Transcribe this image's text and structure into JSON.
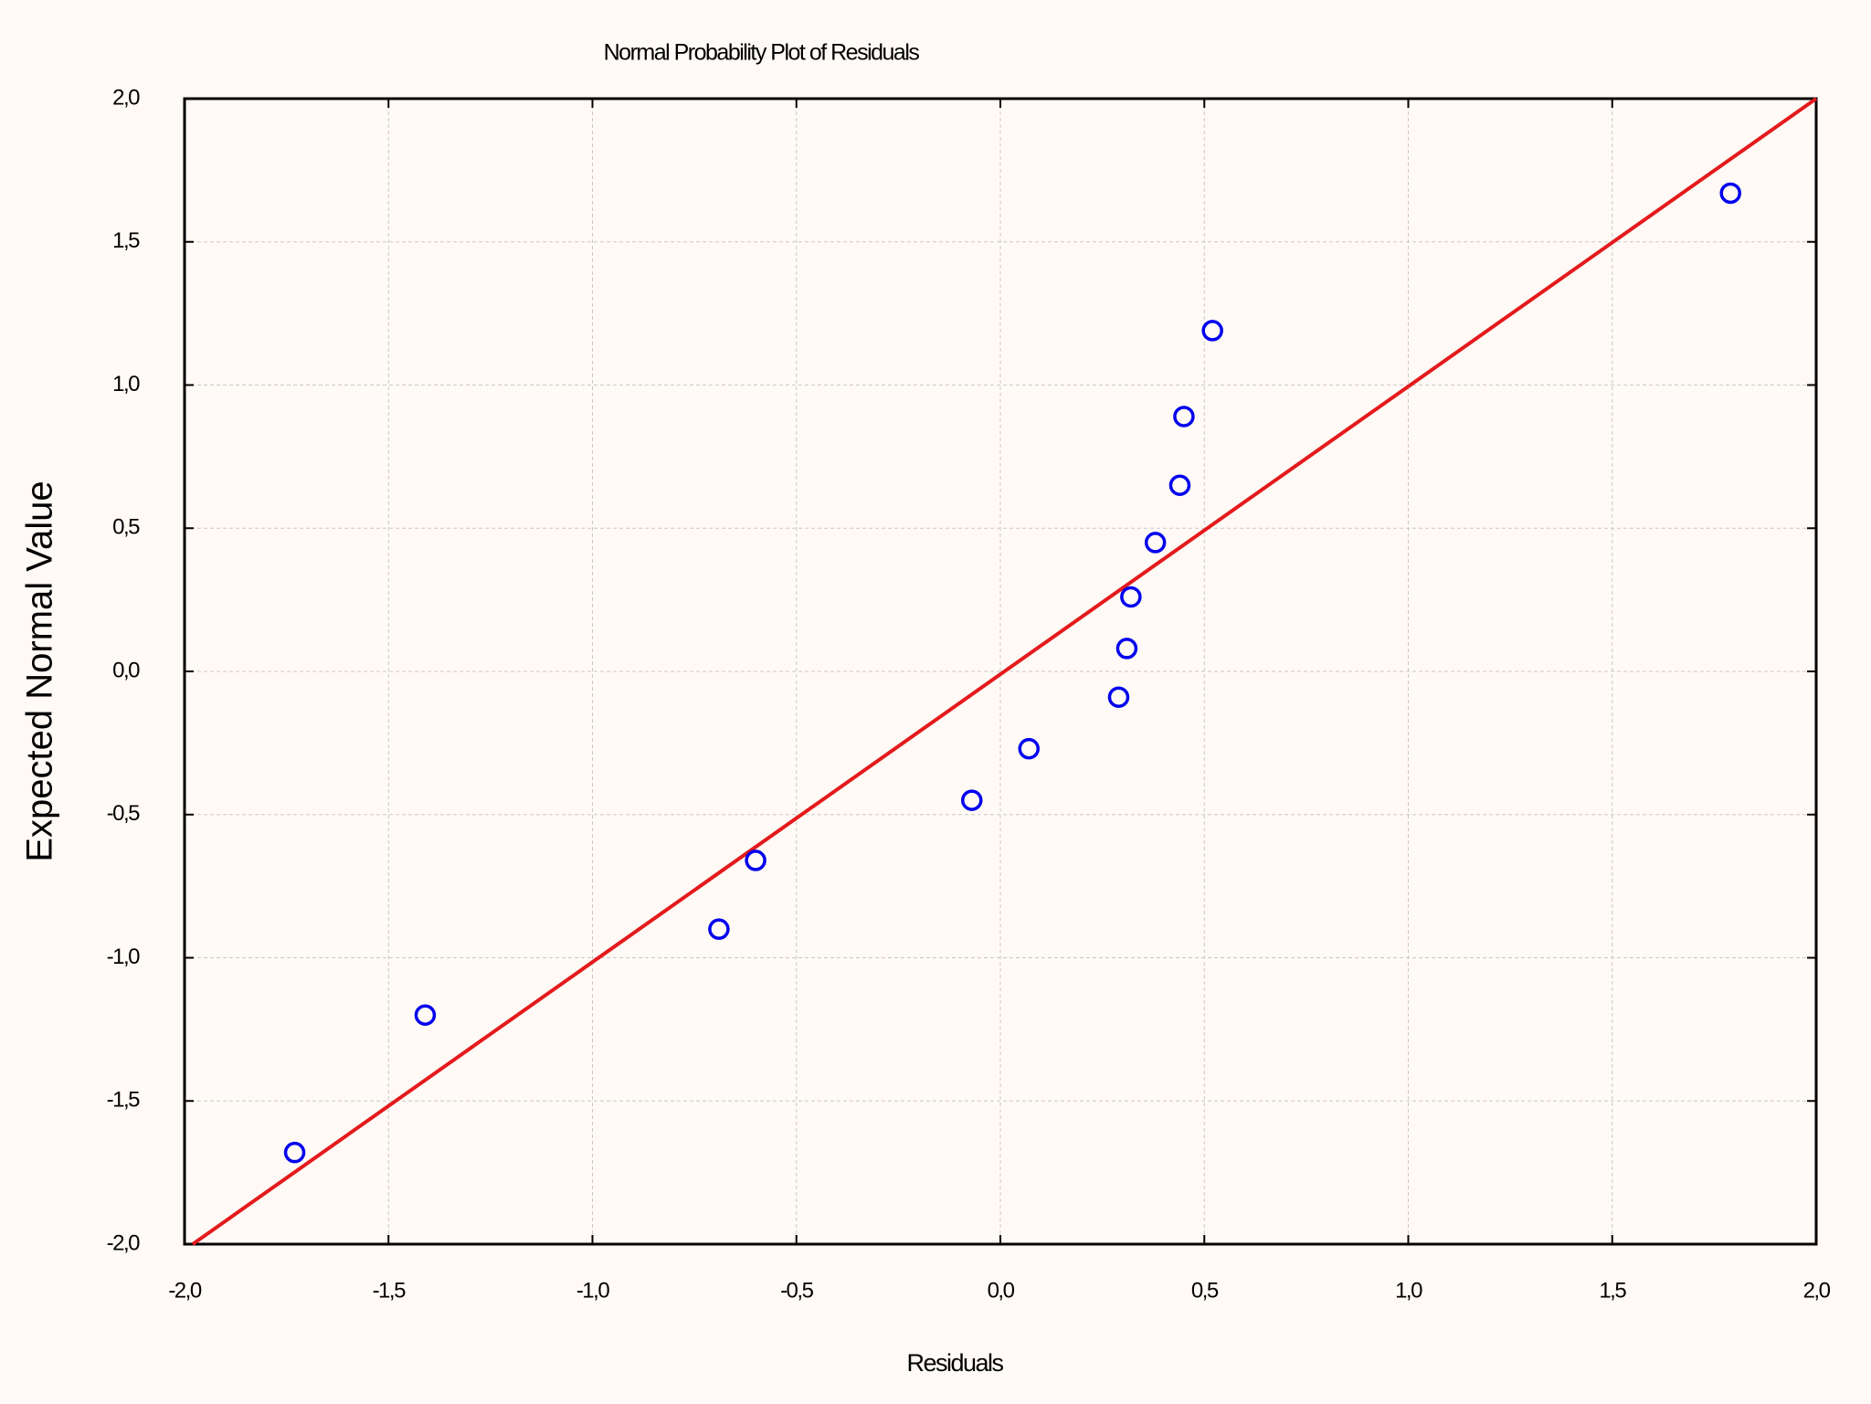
{
  "chart_data": {
    "type": "scatter",
    "title": "Normal Probability Plot of Residuals",
    "x_label": "Residuals",
    "y_label": "Expected Normal Value",
    "series": [
      {
        "color": "#0000ee",
        "x": [
          -1.73,
          -1.41,
          -0.69,
          -0.6,
          -0.07,
          0.07,
          0.29,
          0.31,
          0.32,
          0.38,
          0.44,
          0.45,
          0.52,
          1.79
        ],
        "values": [
          -1.68,
          -1.2,
          -0.9,
          -0.66,
          -0.45,
          -0.27,
          -0.09,
          0.08,
          0.26,
          0.45,
          0.65,
          0.89,
          1.19,
          1.67
        ]
      }
    ],
    "reference_line": {
      "color": "#e41a1c",
      "x": [
        -1.98,
        2.0
      ],
      "values": [
        -2.0,
        2.0
      ]
    },
    "xlim": [
      -2.0,
      2.0
    ],
    "ylim": [
      -2.0,
      2.0
    ],
    "xticks": [
      {
        "value": -2.0,
        "label": "-2,0"
      },
      {
        "value": -1.5,
        "label": "-1,5"
      },
      {
        "value": -1.0,
        "label": "-1,0"
      },
      {
        "value": -0.5,
        "label": "-0,5"
      },
      {
        "value": 0,
        "label": "0,0"
      },
      {
        "value": 0.5,
        "label": "0,5"
      },
      {
        "value": 1.0,
        "label": "1,0"
      },
      {
        "value": 1.5,
        "label": "1,5"
      },
      {
        "value": 2.0,
        "label": "2,0"
      }
    ],
    "yticks": [
      {
        "value": -2.0,
        "label": "-2,0"
      },
      {
        "value": -1.5,
        "label": "-1,5"
      },
      {
        "value": -1.0,
        "label": "-1,0"
      },
      {
        "value": -0.5,
        "label": "-0,5"
      },
      {
        "value": 0,
        "label": "0,0"
      },
      {
        "value": 0.5,
        "label": "0,5"
      },
      {
        "value": 1.0,
        "label": "1,0"
      },
      {
        "value": 1.5,
        "label": "1,5"
      },
      {
        "value": 2.0,
        "label": "2,0"
      }
    ],
    "grid": true
  }
}
